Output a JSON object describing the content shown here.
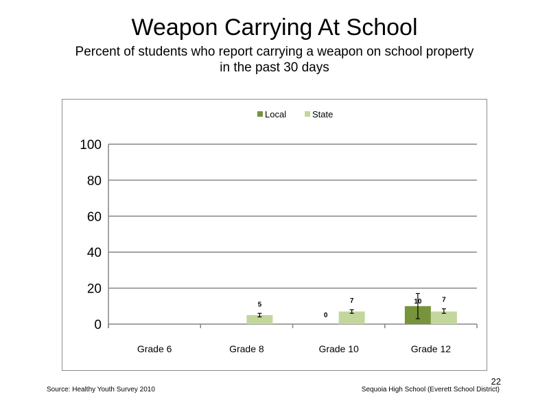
{
  "slide": {
    "title": "Weapon Carrying At School",
    "subtitle": "Percent of students who report carrying a weapon on school property in the past 30 days",
    "source": "Source: Healthy Youth Survey 2010",
    "school": "Sequoia High School (Everett School District)",
    "page_number": "22"
  },
  "chart_data": {
    "type": "bar",
    "categories": [
      "Grade 6",
      "Grade 8",
      "Grade 10",
      "Grade 12"
    ],
    "series": [
      {
        "name": "Local",
        "color": "#77933c",
        "values": [
          null,
          null,
          0,
          10
        ],
        "labels": [
          "",
          "",
          "0",
          "10"
        ],
        "error": [
          null,
          null,
          null,
          [
            3,
            17
          ]
        ]
      },
      {
        "name": "State",
        "color": "#c3d69b",
        "values": [
          null,
          5,
          7,
          7
        ],
        "labels": [
          "",
          "5",
          "7",
          "7"
        ],
        "error": [
          null,
          [
            4,
            6
          ],
          [
            6,
            8
          ],
          [
            6,
            8.5
          ]
        ]
      }
    ],
    "yticks": [
      "0",
      "20",
      "40",
      "60",
      "80",
      "100"
    ],
    "ylim": [
      0,
      100
    ],
    "legend": "top-center",
    "grid": true
  }
}
